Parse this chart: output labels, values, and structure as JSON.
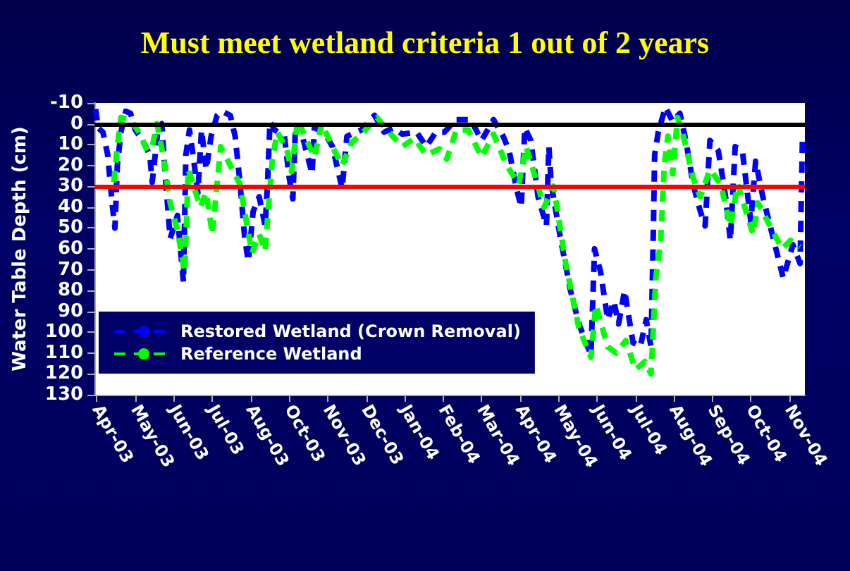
{
  "chart_data": {
    "type": "line",
    "title": "Must meet wetland criteria 1 out of 2 years",
    "ylabel": "Water Table Depth (cm)",
    "xlim": [
      "2003-04-23",
      "2004-12-04"
    ],
    "xticks": [
      {
        "value": "2003-04-25",
        "label": "Apr-03"
      },
      {
        "value": "2003-05-27",
        "label": "May-03"
      },
      {
        "value": "2003-06-28",
        "label": "Jun-03"
      },
      {
        "value": "2003-07-30",
        "label": "Jul-03"
      },
      {
        "value": "2003-08-31",
        "label": "Aug-03"
      },
      {
        "value": "2003-10-02",
        "label": "Oct-03"
      },
      {
        "value": "2003-11-03",
        "label": "Nov-03"
      },
      {
        "value": "2003-12-05",
        "label": "Dec-03"
      },
      {
        "value": "2004-01-06",
        "label": "Jan-04"
      },
      {
        "value": "2004-02-07",
        "label": "Feb-04"
      },
      {
        "value": "2004-03-10",
        "label": "Mar-04"
      },
      {
        "value": "2004-04-11",
        "label": "Apr-04"
      },
      {
        "value": "2004-05-13",
        "label": "May-04"
      },
      {
        "value": "2004-06-14",
        "label": "Jun-04"
      },
      {
        "value": "2004-07-16",
        "label": "Jul-04"
      },
      {
        "value": "2004-08-17",
        "label": "Aug-04"
      },
      {
        "value": "2004-09-18",
        "label": "Sep-04"
      },
      {
        "value": "2004-10-20",
        "label": "Oct-04"
      },
      {
        "value": "2004-11-21",
        "label": "Nov-04"
      }
    ],
    "ylim": [
      130,
      -10
    ],
    "yticks": [
      -10,
      0,
      10,
      20,
      30,
      40,
      50,
      60,
      70,
      80,
      90,
      100,
      110,
      120,
      130
    ],
    "series": [
      {
        "name": "Restored Wetland (Crown Removal)",
        "color": "#0000ff",
        "x": [
          "2003-04-24",
          "2003-04-26",
          "2003-04-30",
          "2003-05-04",
          "2003-05-08",
          "2003-05-10",
          "2003-05-12",
          "2003-05-15",
          "2003-05-19",
          "2003-05-23",
          "2003-05-27",
          "2003-06-02",
          "2003-06-08",
          "2003-06-10",
          "2003-06-15",
          "2003-06-18",
          "2003-06-21",
          "2003-06-25",
          "2003-07-01",
          "2003-07-06",
          "2003-07-08",
          "2003-07-11",
          "2003-07-14",
          "2003-07-18",
          "2003-07-21",
          "2003-07-25",
          "2003-07-29",
          "2003-08-03",
          "2003-08-07",
          "2003-08-14",
          "2003-08-18",
          "2003-08-22",
          "2003-08-26",
          "2003-08-29",
          "2003-09-02",
          "2003-09-07",
          "2003-09-12",
          "2003-09-14",
          "2003-09-16",
          "2003-09-20",
          "2003-09-28",
          "2003-10-02",
          "2003-10-05",
          "2003-10-07",
          "2003-10-13",
          "2003-10-21",
          "2003-10-23",
          "2003-10-31",
          "2003-11-07",
          "2003-11-15",
          "2003-11-19",
          "2003-12-01",
          "2003-12-12",
          "2003-12-20",
          "2003-12-28",
          "2004-01-04",
          "2004-01-16",
          "2004-01-24",
          "2004-02-01",
          "2004-02-08",
          "2004-02-18",
          "2004-03-01",
          "2004-03-10",
          "2004-03-20",
          "2004-03-28",
          "2004-04-02",
          "2004-04-08",
          "2004-04-12",
          "2004-04-15",
          "2004-04-20",
          "2004-04-26",
          "2004-05-03",
          "2004-05-05",
          "2004-05-07",
          "2004-05-15",
          "2004-05-23",
          "2004-05-30",
          "2004-06-09",
          "2004-06-12",
          "2004-06-17",
          "2004-06-23",
          "2004-06-28",
          "2004-07-02",
          "2004-07-07",
          "2004-07-14",
          "2004-07-20",
          "2004-07-25",
          "2004-07-29",
          "2004-07-31",
          "2004-08-01",
          "2004-08-04",
          "2004-08-10",
          "2004-08-16",
          "2004-08-22",
          "2004-08-27",
          "2004-09-02",
          "2004-09-08",
          "2004-09-12",
          "2004-09-16",
          "2004-09-23",
          "2004-09-29",
          "2004-10-03",
          "2004-10-07",
          "2004-10-13",
          "2004-10-20",
          "2004-10-24",
          "2004-10-30",
          "2004-11-09",
          "2004-11-16",
          "2004-11-24",
          "2004-11-30",
          "2004-12-02"
        ],
        "values": [
          -7,
          2,
          4,
          15,
          40,
          50,
          20,
          4,
          -6,
          -5,
          3,
          8,
          15,
          28,
          2,
          0,
          26,
          55,
          44,
          76,
          15,
          3,
          15,
          33,
          3,
          22,
          6,
          -4,
          -6,
          -4,
          6,
          28,
          55,
          66,
          42,
          35,
          49,
          28,
          -1,
          3,
          6,
          26,
          36,
          5,
          6,
          24,
          2,
          4,
          11,
          31,
          6,
          3,
          -4,
          4,
          2,
          5,
          4,
          11,
          4,
          4,
          -2,
          -2,
          8,
          -2,
          6,
          13,
          31,
          40,
          2,
          8,
          35,
          49,
          11,
          29,
          56,
          80,
          96,
          111,
          60,
          71,
          94,
          85,
          96,
          80,
          105,
          107,
          94,
          107,
          49,
          15,
          4,
          -8,
          -1,
          -5,
          8,
          29,
          42,
          49,
          8,
          13,
          35,
          56,
          11,
          13,
          47,
          18,
          35,
          58,
          74,
          58,
          67,
          6
        ]
      },
      {
        "name": "Reference Wetland",
        "color": "#00ff00",
        "x": [
          "2003-05-09",
          "2003-05-12",
          "2003-05-15",
          "2003-05-23",
          "2003-05-31",
          "2003-06-06",
          "2003-06-10",
          "2003-06-14",
          "2003-06-19",
          "2003-06-25",
          "2003-07-01",
          "2003-07-07",
          "2003-07-10",
          "2003-07-14",
          "2003-07-20",
          "2003-07-25",
          "2003-07-30",
          "2003-08-06",
          "2003-08-14",
          "2003-08-22",
          "2003-08-28",
          "2003-09-01",
          "2003-09-07",
          "2003-09-12",
          "2003-09-15",
          "2003-09-18",
          "2003-09-22",
          "2003-09-30",
          "2003-10-04",
          "2003-10-09",
          "2003-10-15",
          "2003-10-23",
          "2003-10-29",
          "2003-11-07",
          "2003-11-15",
          "2003-11-23",
          "2003-12-01",
          "2003-12-14",
          "2003-12-24",
          "2004-01-04",
          "2004-01-14",
          "2004-01-24",
          "2004-02-04",
          "2004-02-10",
          "2004-02-18",
          "2004-02-28",
          "2004-03-10",
          "2004-03-20",
          "2004-03-31",
          "2004-04-10",
          "2004-04-16",
          "2004-04-24",
          "2004-05-01",
          "2004-05-09",
          "2004-05-19",
          "2004-05-30",
          "2004-06-09",
          "2004-06-13",
          "2004-06-23",
          "2004-06-30",
          "2004-07-08",
          "2004-07-16",
          "2004-07-24",
          "2004-07-29",
          "2004-08-02",
          "2004-08-06",
          "2004-08-09",
          "2004-08-12",
          "2004-08-16",
          "2004-08-20",
          "2004-08-25",
          "2004-09-02",
          "2004-09-08",
          "2004-09-16",
          "2004-09-25",
          "2004-10-03",
          "2004-10-09",
          "2004-10-22",
          "2004-10-26",
          "2004-11-05",
          "2004-11-15",
          "2004-11-22",
          "2004-11-30"
        ],
        "values": [
          28,
          11,
          -3,
          -2,
          5,
          13,
          11,
          0,
          15,
          38,
          51,
          71,
          22,
          29,
          40,
          33,
          53,
          11,
          20,
          29,
          49,
          62,
          53,
          61,
          38,
          17,
          4,
          12,
          23,
          -2,
          6,
          16,
          0,
          11,
          20,
          9,
          5,
          -3,
          4,
          11,
          7,
          15,
          12,
          17,
          3,
          3,
          16,
          5,
          20,
          29,
          11,
          26,
          40,
          30,
          67,
          98,
          112,
          87,
          107,
          110,
          104,
          118,
          114,
          120,
          74,
          56,
          20,
          6,
          24,
          -3,
          6,
          26,
          35,
          22,
          29,
          49,
          29,
          53,
          38,
          49,
          60,
          56,
          59
        ]
      }
    ],
    "ref_lines": [
      {
        "axis": "y",
        "value": 0,
        "color": "#000000"
      },
      {
        "axis": "y",
        "value": 30,
        "color": "#ff0000"
      }
    ],
    "line_style": "dashed",
    "marker": "none",
    "grid": false,
    "legend": "bottom left"
  }
}
